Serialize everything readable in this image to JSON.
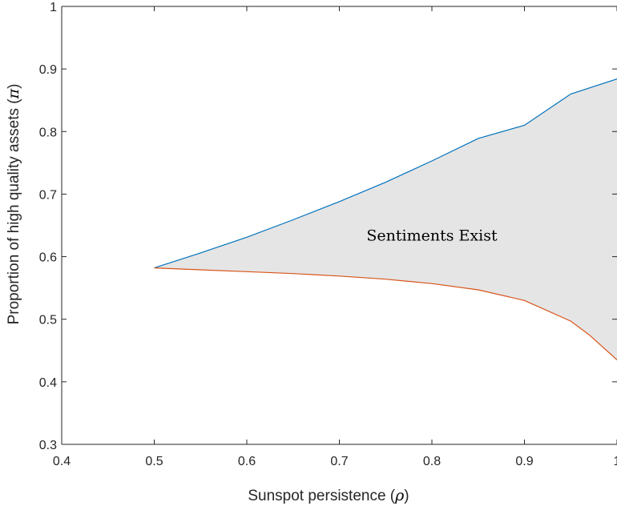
{
  "chart_data": {
    "type": "area",
    "title": "",
    "xlabel": "Sunspot persistence (",
    "xlabel_symbol": "ρ",
    "ylabel": "Proportion of high quality assets (",
    "ylabel_symbol": "π",
    "xlim": [
      0.4,
      1.0
    ],
    "ylim": [
      0.3,
      1.0
    ],
    "xticks": [
      0.4,
      0.5,
      0.6,
      0.7,
      0.8,
      0.9,
      1
    ],
    "xtick_labels": [
      "0.4",
      "0.5",
      "0.6",
      "0.7",
      "0.8",
      "0.9",
      "1"
    ],
    "yticks": [
      0.3,
      0.4,
      0.5,
      0.6,
      0.7,
      0.8,
      0.9,
      1
    ],
    "ytick_labels": [
      "0.3",
      "0.4",
      "0.5",
      "0.6",
      "0.7",
      "0.8",
      "0.9",
      "1"
    ],
    "grid": false,
    "series": [
      {
        "role": "upper-boundary",
        "color": "#0072bd",
        "x": [
          0.5,
          0.55,
          0.6,
          0.65,
          0.7,
          0.75,
          0.8,
          0.85,
          0.9,
          0.95,
          1.0
        ],
        "y": [
          0.582,
          0.606,
          0.631,
          0.659,
          0.688,
          0.719,
          0.753,
          0.789,
          0.81,
          0.86,
          0.884
        ]
      },
      {
        "role": "lower-boundary",
        "color": "#d95319",
        "x": [
          0.5,
          0.55,
          0.6,
          0.65,
          0.7,
          0.75,
          0.8,
          0.85,
          0.9,
          0.95,
          0.97,
          1.0
        ],
        "y": [
          0.582,
          0.579,
          0.576,
          0.573,
          0.569,
          0.564,
          0.557,
          0.547,
          0.53,
          0.497,
          0.475,
          0.435
        ]
      }
    ],
    "region": {
      "label": "Sentiments Exist",
      "fill": "#e5e5e5",
      "label_x": 0.8,
      "label_y": 0.626
    }
  }
}
